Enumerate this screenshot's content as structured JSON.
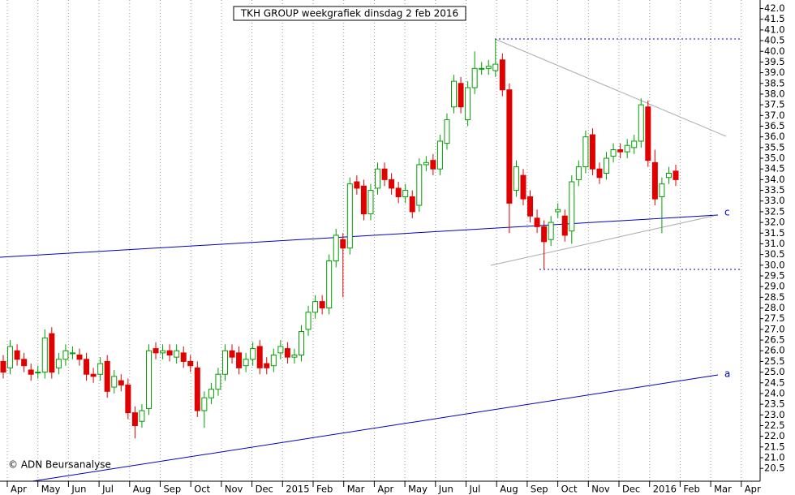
{
  "chart_data": {
    "type": "candlestick",
    "title": "TKH GROUP weekgrafiek dinsdag 2 feb 2016",
    "credit": "© ADN Beursanalyse",
    "annotations": [
      "c",
      "a"
    ],
    "xticks": [
      "Apr",
      "May",
      "Jun",
      "Jul",
      "Aug",
      "Sep",
      "Oct",
      "Nov",
      "Dec",
      "2015",
      "Feb",
      "Mar",
      "Apr",
      "May",
      "Jun",
      "Jul",
      "Aug",
      "Sep",
      "Oct",
      "Nov",
      "Dec",
      "2016",
      "Feb",
      "Mar",
      "Apr"
    ],
    "ylim": [
      19.9,
      42.4
    ],
    "yticks": [
      20.5,
      {
        "value": 21,
        "label": "21.0"
      },
      21.5,
      {
        "value": 22,
        "label": "22.0"
      },
      22.5,
      {
        "value": 23,
        "label": "23.0"
      },
      23.5,
      {
        "value": 24,
        "label": "24.0"
      },
      24.5,
      {
        "value": 25,
        "label": "25.0"
      },
      25.5,
      {
        "value": 26,
        "label": "26.0"
      },
      26.5,
      {
        "value": 27,
        "label": "27.0"
      },
      27.5,
      {
        "value": 28,
        "label": "28.0"
      },
      28.5,
      {
        "value": 29,
        "label": "29.0"
      },
      29.5,
      {
        "value": 30,
        "label": "30.0"
      },
      30.5,
      {
        "value": 31,
        "label": "31.0"
      },
      31.5,
      {
        "value": 32,
        "label": "32.0"
      },
      32.5,
      {
        "value": 33,
        "label": "33.0"
      },
      33.5,
      {
        "value": 34,
        "label": "34.0"
      },
      34.5,
      {
        "value": 35,
        "label": "35.0"
      },
      35.5,
      {
        "value": 36,
        "label": "36.0"
      },
      36.5,
      {
        "value": 37,
        "label": "37.0"
      },
      37.5,
      {
        "value": 38,
        "label": "38.0"
      },
      38.5,
      {
        "value": 39,
        "label": "39.0"
      },
      39.5,
      {
        "value": 40,
        "label": "40.0"
      },
      40.5,
      {
        "value": 41,
        "label": "41.0"
      },
      41.5,
      {
        "value": 42,
        "label": "42.0"
      }
    ],
    "up_color": "#00a000",
    "down_color": "#e00000",
    "open": [
      25.5,
      25.2,
      26.0,
      25.6,
      25.1,
      25.0,
      25.0,
      26.8,
      25.2,
      25.6,
      25.9,
      25.8,
      25.6,
      24.9,
      24.9,
      25.5,
      24.3,
      24.6,
      24.4,
      23.1,
      22.7,
      23.3,
      26.1,
      25.9,
      26.0,
      25.7,
      25.9,
      25.5,
      25.2,
      23.2,
      23.8,
      24.2,
      24.9,
      26.0,
      25.9,
      25.3,
      25.6,
      26.2,
      25.4,
      25.3,
      25.9,
      26.1,
      25.7,
      25.8,
      27.0,
      27.8,
      28.3,
      28.0,
      30.2,
      31.2,
      30.8,
      33.9,
      33.7,
      32.4,
      33.6,
      34.5,
      34.0,
      33.6,
      33.2,
      33.2,
      32.8,
      34.7,
      34.9,
      34.5,
      35.7,
      37.4,
      38.5,
      36.8,
      38.3,
      39.2,
      39.2,
      39.1,
      39.6,
      38.2,
      33.5,
      34.2,
      33.2,
      32.2,
      31.8,
      31.2,
      32.5,
      32.3,
      31.6,
      34.0,
      34.6,
      36.1,
      34.5,
      34.3,
      35.1,
      35.4,
      35.3,
      35.5,
      35.8,
      37.4,
      34.8,
      33.2,
      34.1,
      34.4
    ],
    "high": [
      25.8,
      26.5,
      26.3,
      25.9,
      25.4,
      25.3,
      27.0,
      27.1,
      25.9,
      26.3,
      26.2,
      26.1,
      25.9,
      25.2,
      25.7,
      25.8,
      25.1,
      24.9,
      24.7,
      23.4,
      23.5,
      26.3,
      26.4,
      26.3,
      26.3,
      26.3,
      26.2,
      25.8,
      25.5,
      24.1,
      24.5,
      25.2,
      26.3,
      26.3,
      26.2,
      25.9,
      26.4,
      26.5,
      25.7,
      26.1,
      26.5,
      26.4,
      26.1,
      27.2,
      28.1,
      28.6,
      28.6,
      30.5,
      31.7,
      31.5,
      34.1,
      34.2,
      34.0,
      33.8,
      34.8,
      34.8,
      34.3,
      33.9,
      33.8,
      33.5,
      35.0,
      35.1,
      35.2,
      36.1,
      37.1,
      38.9,
      38.8,
      38.6,
      40.0,
      39.5,
      39.6,
      40.6,
      39.9,
      38.5,
      34.9,
      34.5,
      33.5,
      32.6,
      32.1,
      32.3,
      32.9,
      32.6,
      34.2,
      34.9,
      36.3,
      36.4,
      34.8,
      35.3,
      35.7,
      35.7,
      35.9,
      36.1,
      37.8,
      37.7,
      35.4,
      34.1,
      34.6,
      34.7
    ],
    "low": [
      24.7,
      24.9,
      25.3,
      25.0,
      24.6,
      24.7,
      24.7,
      24.7,
      24.9,
      25.3,
      25.6,
      25.3,
      24.6,
      24.5,
      24.6,
      23.8,
      24.0,
      24.1,
      22.8,
      21.9,
      22.4,
      23.0,
      25.6,
      25.6,
      25.5,
      25.4,
      25.2,
      25.0,
      22.9,
      22.4,
      23.5,
      23.9,
      24.6,
      25.4,
      24.9,
      25.0,
      25.3,
      24.9,
      24.9,
      25.0,
      25.6,
      25.4,
      25.4,
      25.5,
      26.7,
      27.5,
      27.7,
      27.7,
      29.9,
      28.5,
      30.5,
      33.3,
      32.1,
      32.1,
      33.3,
      33.7,
      33.3,
      32.9,
      32.9,
      32.2,
      32.5,
      34.4,
      34.2,
      34.2,
      35.4,
      37.1,
      37.1,
      36.5,
      38.0,
      38.9,
      38.9,
      38.8,
      37.9,
      31.5,
      33.2,
      32.8,
      32.0,
      31.5,
      29.8,
      30.9,
      32.2,
      31.1,
      31.0,
      33.7,
      34.3,
      34.2,
      33.8,
      34.0,
      34.8,
      35.0,
      35.0,
      35.2,
      35.5,
      34.6,
      32.8,
      31.5,
      33.8,
      33.7
    ],
    "close": [
      25.0,
      26.2,
      25.6,
      25.3,
      24.9,
      25.0,
      26.6,
      25.0,
      25.6,
      26.0,
      25.9,
      25.6,
      24.9,
      24.8,
      25.4,
      24.1,
      24.8,
      24.4,
      23.1,
      22.5,
      23.2,
      26.0,
      25.9,
      26.0,
      25.8,
      26.0,
      25.5,
      25.3,
      23.2,
      23.8,
      24.2,
      24.9,
      26.0,
      25.7,
      25.2,
      25.6,
      26.1,
      25.2,
      25.2,
      25.8,
      26.2,
      25.7,
      25.8,
      26.9,
      27.8,
      28.3,
      28.0,
      30.2,
      31.4,
      30.8,
      33.8,
      33.6,
      32.4,
      33.5,
      34.5,
      34.0,
      33.6,
      33.2,
      33.5,
      32.5,
      34.7,
      34.8,
      34.5,
      35.8,
      36.8,
      38.6,
      37.4,
      38.3,
      39.2,
      39.2,
      39.3,
      39.4,
      38.2,
      32.9,
      34.6,
      33.1,
      32.3,
      31.8,
      31.1,
      32.0,
      32.6,
      31.4,
      33.9,
      34.6,
      36.0,
      34.5,
      34.1,
      35.0,
      35.4,
      35.3,
      35.6,
      35.8,
      37.5,
      34.9,
      33.1,
      33.8,
      34.3,
      34.0
    ]
  }
}
